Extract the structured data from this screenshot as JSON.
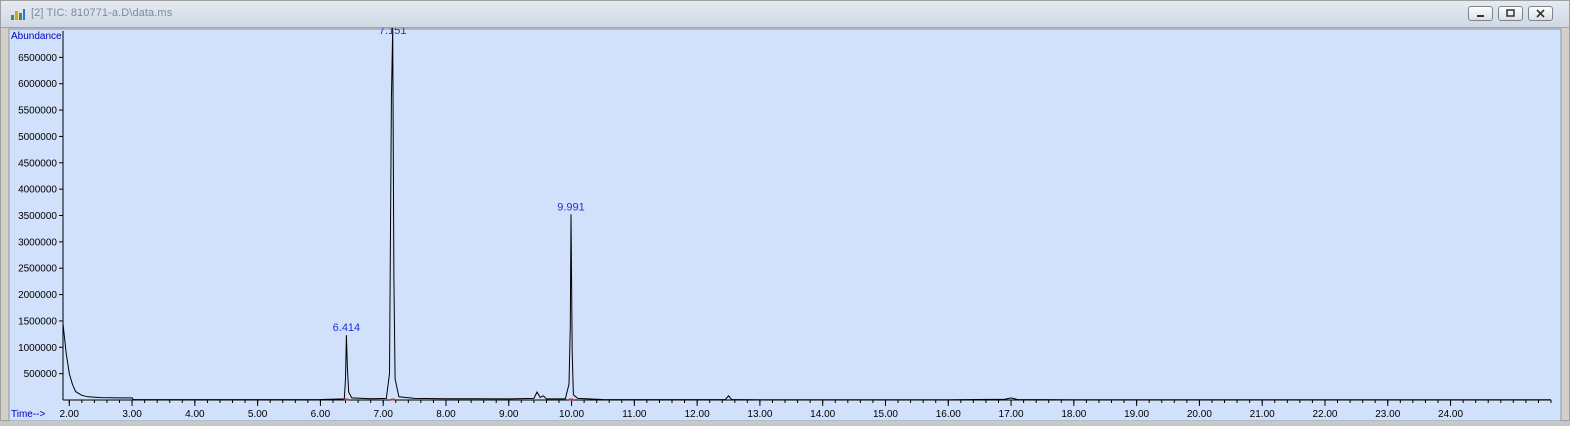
{
  "window": {
    "title": "[2] TIC: 810771-a.D\\data.ms"
  },
  "chart_data": {
    "type": "line",
    "title": "TIC: 810771-a.D\\data.ms",
    "xlabel": "Time-->",
    "ylabel": "Abundance",
    "xlim": [
      1.9,
      25.6
    ],
    "ylim": [
      0,
      7000000
    ],
    "x_ticks": [
      2.0,
      3.0,
      4.0,
      5.0,
      6.0,
      7.0,
      8.0,
      9.0,
      10.0,
      11.0,
      12.0,
      13.0,
      14.0,
      15.0,
      16.0,
      17.0,
      18.0,
      19.0,
      20.0,
      21.0,
      22.0,
      23.0,
      24.0
    ],
    "x_tick_labels": [
      "2.00",
      "3.00",
      "4.00",
      "5.00",
      "6.00",
      "7.00",
      "8.00",
      "9.00",
      "10.00",
      "11.00",
      "12.00",
      "13.00",
      "14.00",
      "15.00",
      "16.00",
      "17.00",
      "18.00",
      "19.00",
      "20.00",
      "21.00",
      "22.00",
      "23.00",
      "24.00"
    ],
    "y_ticks": [
      500000,
      1000000,
      1500000,
      2000000,
      2500000,
      3000000,
      3500000,
      4000000,
      4500000,
      5000000,
      5500000,
      6000000,
      6500000
    ],
    "y_tick_labels": [
      "500000",
      "1000000",
      "1500000",
      "2000000",
      "2500000",
      "3000000",
      "3500000",
      "4000000",
      "4500000",
      "5000000",
      "5500000",
      "6000000",
      "6500000"
    ],
    "series": [
      {
        "name": "TIC",
        "x": [
          1.9,
          1.95,
          2.0,
          2.05,
          2.1,
          2.2,
          2.3,
          2.5,
          2.8,
          3.0,
          3.02,
          3.5,
          4.0,
          5.0,
          6.0,
          6.38,
          6.4,
          6.414,
          6.43,
          6.45,
          6.5,
          6.8,
          7.05,
          7.1,
          7.13,
          7.151,
          7.17,
          7.19,
          7.25,
          7.5,
          8.0,
          8.5,
          9.0,
          9.4,
          9.45,
          9.5,
          9.55,
          9.6,
          9.9,
          9.96,
          9.98,
          9.991,
          10.01,
          10.03,
          10.1,
          10.5,
          11.0,
          12.0,
          12.45,
          12.5,
          12.55,
          13.0,
          14.0,
          15.0,
          16.0,
          16.9,
          17.0,
          17.1,
          18.0,
          20.0,
          22.0,
          24.0,
          25.6
        ],
        "y": [
          1450000,
          900000,
          500000,
          300000,
          160000,
          90000,
          60000,
          45000,
          40000,
          40000,
          10000,
          8000,
          8000,
          8000,
          10000,
          20000,
          400000,
          1230000,
          600000,
          150000,
          40000,
          25000,
          30000,
          500000,
          5700000,
          7200000,
          2300000,
          400000,
          60000,
          30000,
          25000,
          25000,
          20000,
          30000,
          150000,
          50000,
          80000,
          20000,
          20000,
          300000,
          1400000,
          3520000,
          900000,
          100000,
          30000,
          10000,
          8000,
          8000,
          10000,
          80000,
          10000,
          6000,
          6000,
          6000,
          6000,
          15000,
          40000,
          10000,
          5000,
          5000,
          5000,
          5000,
          5000
        ]
      }
    ],
    "annotations": [
      {
        "label": "6.414",
        "x": 6.414,
        "y": 1230000
      },
      {
        "label": "7.151",
        "x": 7.151,
        "y": 7200000
      },
      {
        "label": "9.991",
        "x": 9.991,
        "y": 3520000
      }
    ],
    "colors": {
      "background": "#d1e1fb",
      "trace": "#000000",
      "axis_text": "#0000c0",
      "peak_label": "#1f33d6",
      "marker": "#d73030"
    }
  }
}
